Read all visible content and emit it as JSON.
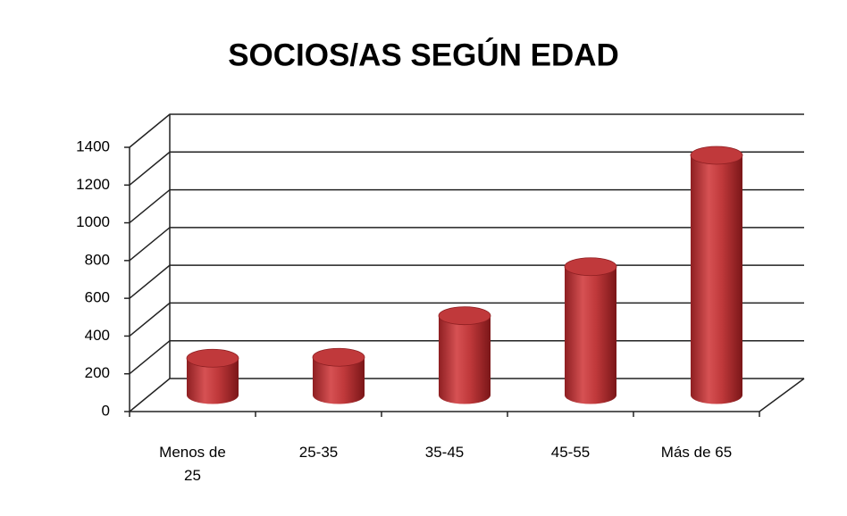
{
  "chart_data": {
    "type": "bar",
    "title": "SOCIOS/AS SEGÚN EDAD",
    "categories": [
      "Menos de 25",
      "25-35",
      "35-45",
      "45-55",
      "Más de 65"
    ],
    "values": [
      195,
      200,
      420,
      680,
      1270
    ],
    "color": "#c0393b",
    "ylim": [
      0,
      1400
    ],
    "yticks": [
      0,
      200,
      400,
      600,
      800,
      1000,
      1200,
      1400
    ],
    "grid": true
  }
}
